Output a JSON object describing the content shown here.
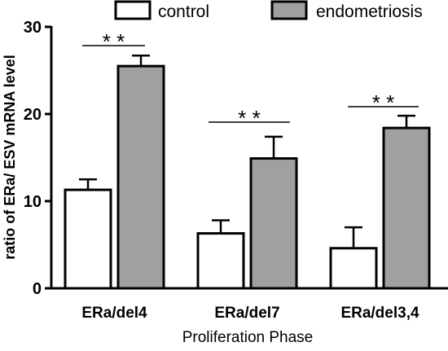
{
  "chart_data": {
    "type": "bar",
    "ylabel": "ratio of ERa/ ESV mRNA level",
    "xlabel": "Proliferation Phase",
    "ylim": [
      0,
      30
    ],
    "yticks": [
      0,
      10,
      20,
      30
    ],
    "categories": [
      "ERa/del4",
      "ERa/del7",
      "ERa/del3,4"
    ],
    "series": [
      {
        "name": "control",
        "values": [
          11.3,
          6.3,
          4.6
        ],
        "errors": [
          1.2,
          1.5,
          2.4
        ],
        "color": "#ffffff"
      },
      {
        "name": "endometriosis",
        "values": [
          25.5,
          14.9,
          18.4
        ],
        "errors": [
          1.2,
          2.5,
          1.4
        ],
        "color": "#a0a0a0"
      }
    ],
    "significance": [
      "* *",
      "* *",
      "* *"
    ],
    "legend_position": "top-right",
    "grid": false
  }
}
